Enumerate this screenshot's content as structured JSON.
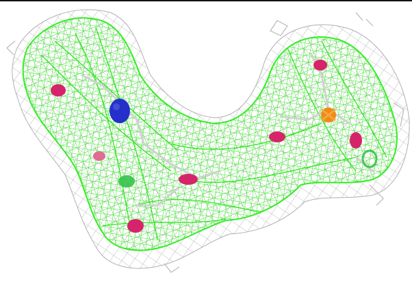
{
  "scene": {
    "subject": "electron-density-mesh",
    "colors": {
      "background": "#ffffff",
      "frame_rule": "#111111",
      "density_mesh": "#33ee22",
      "density_mesh_dark": "#22cc11",
      "outer_mesh": "#a8a8a8",
      "carbon_stick": "#d1d1d1",
      "oxygen_atom": "#d6246a",
      "nitrogen_atom": "#2430c9",
      "phosphorus_atom": "#f08a16",
      "green_atom": "#35c24a"
    },
    "atoms": [
      {
        "element": "nitrogen",
        "color_key": "nitrogen_atom"
      },
      {
        "element": "phosphorus",
        "color_key": "phosphorus_atom"
      },
      {
        "element": "oxygen",
        "color_key": "oxygen_atom"
      }
    ]
  }
}
